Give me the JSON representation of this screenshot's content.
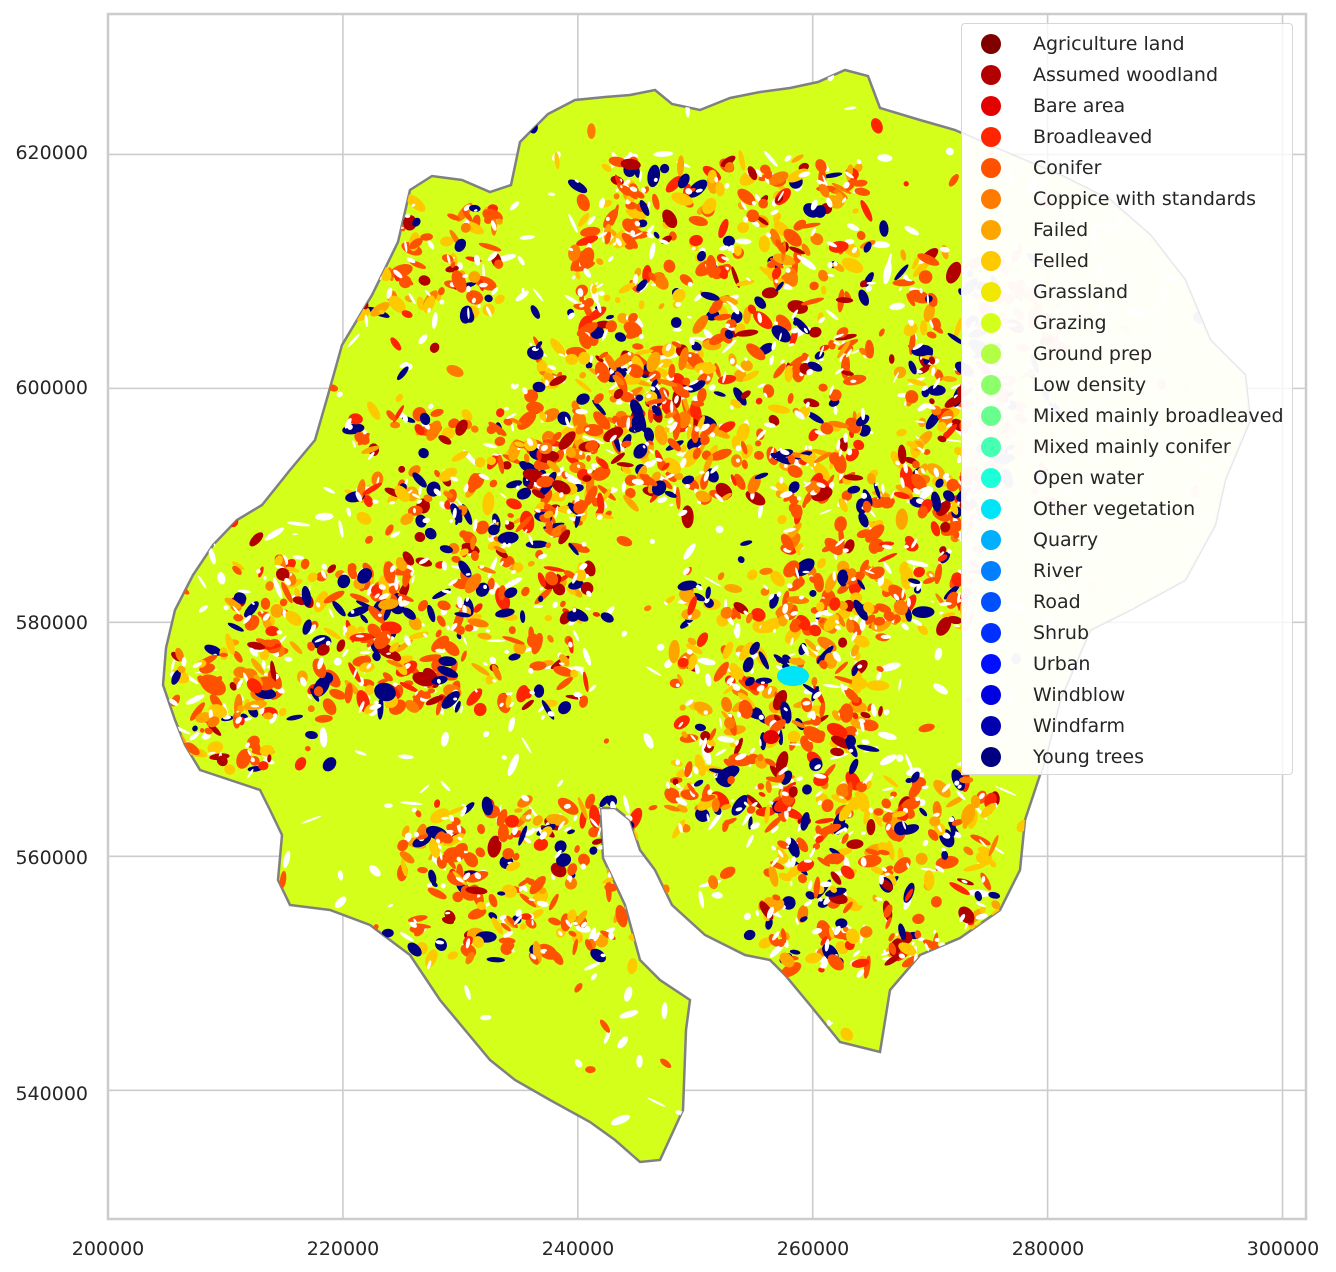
{
  "chart_data": {
    "type": "choropleth map",
    "x_ticks": [
      "200000",
      "220000",
      "240000",
      "260000",
      "280000",
      "300000"
    ],
    "y_ticks": [
      "540000",
      "560000",
      "580000",
      "600000",
      "620000"
    ],
    "xlim": [
      200000,
      302000
    ],
    "ylim": [
      529000,
      632000
    ],
    "grid": true,
    "legend_placement": "top-right",
    "boundary_color": "#808080",
    "dominant_class": "Grazing",
    "legend": [
      {
        "label": "Agriculture land",
        "color": "#800000"
      },
      {
        "label": "Assumed woodland",
        "color": "#b20000"
      },
      {
        "label": "Bare area",
        "color": "#e30000"
      },
      {
        "label": "Broadleaved",
        "color": "#ff2500"
      },
      {
        "label": "Conifer",
        "color": "#ff5200"
      },
      {
        "label": "Coppice with standards",
        "color": "#ff7b00"
      },
      {
        "label": "Failed",
        "color": "#ffa500"
      },
      {
        "label": "Felled",
        "color": "#ffc900"
      },
      {
        "label": "Grassland",
        "color": "#f0e800"
      },
      {
        "label": "Grazing",
        "color": "#d4ff1a"
      },
      {
        "label": "Ground prep",
        "color": "#b2ff45"
      },
      {
        "label": "Low density",
        "color": "#8cff6b"
      },
      {
        "label": "Mixed mainly broadleaved",
        "color": "#69ff8f"
      },
      {
        "label": "Mixed mainly conifer",
        "color": "#45ffb2"
      },
      {
        "label": "Open water",
        "color": "#1cffd9"
      },
      {
        "label": "Other vegetation",
        "color": "#00e4f8"
      },
      {
        "label": "Quarry",
        "color": "#00b0ff"
      },
      {
        "label": "River",
        "color": "#0080ff"
      },
      {
        "label": "Road",
        "color": "#0050ff"
      },
      {
        "label": "Shrub",
        "color": "#0030ff"
      },
      {
        "label": "Urban",
        "color": "#0010ff"
      },
      {
        "label": "Windblow",
        "color": "#0000e0"
      },
      {
        "label": "Windfarm",
        "color": "#0000b0"
      },
      {
        "label": "Young trees",
        "color": "#000080"
      }
    ]
  }
}
